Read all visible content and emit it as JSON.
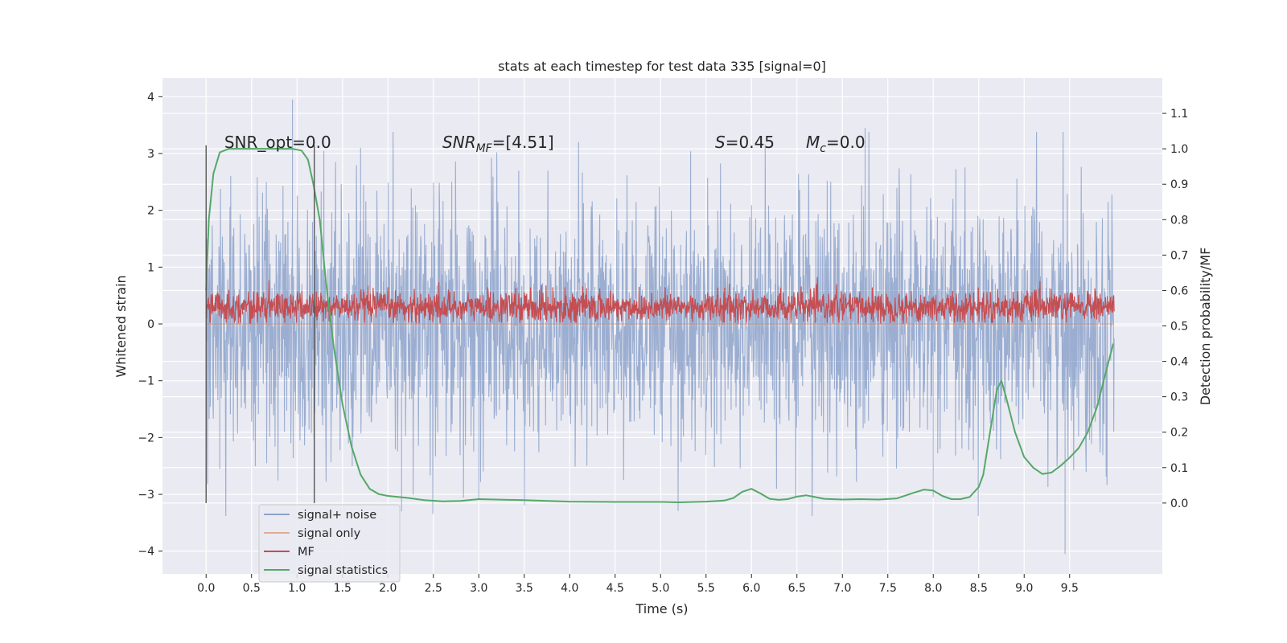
{
  "chart_data": {
    "type": "line",
    "title": "stats at each timestep for test data 335 [signal=0]",
    "xlabel": "Time (s)",
    "ylabel": "Whitened strain",
    "y2label": "Detection probability/MF",
    "xlim": [
      -0.48,
      10.52
    ],
    "ylim": [
      -4.4,
      4.33
    ],
    "y2lim": [
      -0.2,
      1.2
    ],
    "x_ticks": [
      0.0,
      0.5,
      1.0,
      1.5,
      2.0,
      2.5,
      3.0,
      3.5,
      4.0,
      4.5,
      5.0,
      5.5,
      6.0,
      6.5,
      7.0,
      7.5,
      8.0,
      8.5,
      9.0,
      9.5
    ],
    "x_tick_labels": [
      "0.0",
      "0.5",
      "1.0",
      "1.5",
      "2.0",
      "2.5",
      "3.0",
      "3.5",
      "4.0",
      "4.5",
      "5.0",
      "5.5",
      "6.0",
      "6.5",
      "7.0",
      "7.5",
      "8.0",
      "8.5",
      "9.0",
      "9.5"
    ],
    "y_ticks": [
      4,
      3,
      2,
      1,
      0,
      -1,
      -2,
      -3,
      -4
    ],
    "y_tick_labels": [
      "4",
      "3",
      "2",
      "1",
      "0",
      "−1",
      "−2",
      "−3",
      "−4"
    ],
    "y2_ticks": [
      1.1,
      1.0,
      0.9,
      0.8,
      0.7,
      0.6,
      0.5,
      0.4,
      0.3,
      0.2,
      0.1,
      0.0
    ],
    "y2_tick_labels": [
      "1.1",
      "1.0",
      "0.9",
      "0.8",
      "0.7",
      "0.6",
      "0.5",
      "0.4",
      "0.3",
      "0.2",
      "0.1",
      "0.0"
    ],
    "grid": true,
    "legend_position": "lower-left",
    "series": [
      {
        "name": "signal+ noise",
        "color": "#4c72b0",
        "axis": "left",
        "kind": "noise",
        "x_range": [
          0.0,
          9.99
        ],
        "body_range": [
          -1.3,
          1.3
        ],
        "peaks": [
          {
            "x": 0.95,
            "y": 3.95
          },
          {
            "x": 9.45,
            "y": -4.05
          },
          {
            "x": 2.15,
            "y": -3.3
          },
          {
            "x": 7.25,
            "y": 3.45
          },
          {
            "x": 3.0,
            "y": -3.1
          },
          {
            "x": 8.0,
            "y": -3.05
          },
          {
            "x": 1.7,
            "y": 3.1
          },
          {
            "x": 0.15,
            "y": -2.55
          }
        ]
      },
      {
        "name": "signal only",
        "color": "#dd8452",
        "axis": "left",
        "kind": "flat",
        "x_range": [
          0.0,
          9.99
        ],
        "y": 0.0
      },
      {
        "name": "MF",
        "color": "#c44e52",
        "axis": "left",
        "kind": "noise",
        "x_range": [
          0.0,
          9.99
        ],
        "band_range": [
          0.05,
          0.55
        ],
        "peak_max": 1.0
      },
      {
        "name": "signal statistics",
        "color": "#55a868",
        "axis": "right",
        "kind": "line",
        "x": [
          0.0,
          0.03,
          0.08,
          0.15,
          0.25,
          0.4,
          0.6,
          0.8,
          0.95,
          1.05,
          1.12,
          1.18,
          1.25,
          1.32,
          1.4,
          1.5,
          1.6,
          1.7,
          1.8,
          1.9,
          2.0,
          2.2,
          2.4,
          2.6,
          2.8,
          3.0,
          3.5,
          4.0,
          4.5,
          5.0,
          5.2,
          5.5,
          5.7,
          5.8,
          5.9,
          6.0,
          6.1,
          6.2,
          6.3,
          6.4,
          6.5,
          6.6,
          6.7,
          6.8,
          7.0,
          7.2,
          7.4,
          7.6,
          7.8,
          7.9,
          8.0,
          8.1,
          8.2,
          8.3,
          8.4,
          8.5,
          8.55,
          8.6,
          8.7,
          8.75,
          8.8,
          8.9,
          9.0,
          9.1,
          9.2,
          9.3,
          9.4,
          9.5,
          9.6,
          9.7,
          9.8,
          9.9,
          9.98
        ],
        "y": [
          0.6,
          0.8,
          0.93,
          0.99,
          1.0,
          1.0,
          1.0,
          1.0,
          1.0,
          0.995,
          0.97,
          0.9,
          0.8,
          0.62,
          0.45,
          0.28,
          0.16,
          0.08,
          0.04,
          0.025,
          0.02,
          0.015,
          0.008,
          0.005,
          0.006,
          0.011,
          0.008,
          0.004,
          0.003,
          0.003,
          0.002,
          0.004,
          0.007,
          0.014,
          0.032,
          0.04,
          0.027,
          0.012,
          0.009,
          0.011,
          0.018,
          0.022,
          0.017,
          0.012,
          0.01,
          0.011,
          0.01,
          0.013,
          0.03,
          0.038,
          0.035,
          0.02,
          0.011,
          0.011,
          0.017,
          0.045,
          0.08,
          0.16,
          0.32,
          0.345,
          0.3,
          0.2,
          0.13,
          0.1,
          0.082,
          0.086,
          0.105,
          0.128,
          0.155,
          0.2,
          0.27,
          0.37,
          0.45
        ]
      }
    ],
    "vlines": [
      {
        "x": 0.0,
        "color": "#555555"
      },
      {
        "x": 1.19,
        "color": "#555555"
      }
    ],
    "annotations": [
      {
        "id": "snr-opt",
        "text": "SNR_opt=0.0",
        "x": 0.2,
        "y": 3.1
      },
      {
        "id": "snr-mf",
        "label": "SNR",
        "sub": "MF",
        "suffix": "=[4.51]",
        "x": 2.6,
        "y": 3.1
      },
      {
        "id": "s-value",
        "label": "S",
        "sub": "",
        "suffix": "=0.45",
        "x": 5.6,
        "y": 3.1
      },
      {
        "id": "mc-value",
        "label": "M",
        "sub": "c",
        "suffix": "=0.0",
        "x": 6.6,
        "y": 3.1
      }
    ]
  }
}
